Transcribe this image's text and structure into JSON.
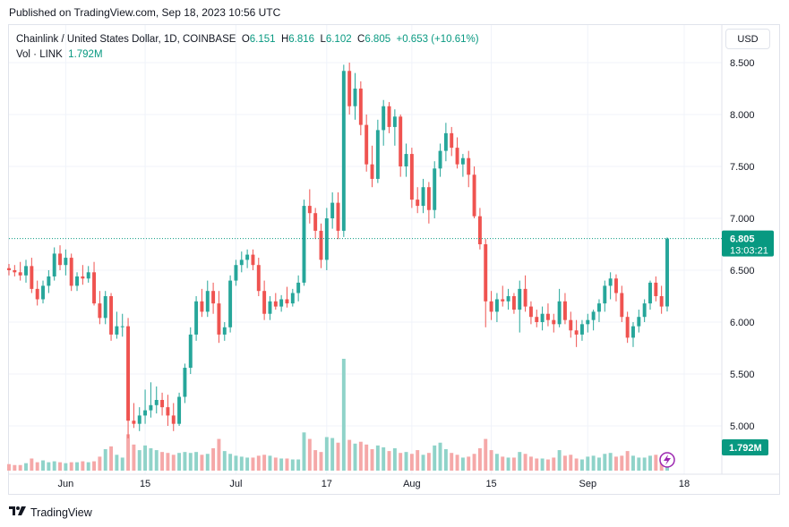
{
  "header": {
    "published": "Published on TradingView.com, Sep 18, 2023 10:56 UTC"
  },
  "legend": {
    "symbol": "Chainlink / United States Dollar, 1D, COINBASE",
    "o_label": "O",
    "o": "6.151",
    "h_label": "H",
    "h": "6.816",
    "l_label": "L",
    "l": "6.102",
    "c_label": "C",
    "c": "6.805",
    "change": "+0.653 (+10.61%)",
    "vol_label": "Vol · LINK",
    "vol": "1.792M"
  },
  "currency_button": "USD",
  "price_badge": {
    "price": "6.805",
    "countdown": "13:03:21"
  },
  "volume_badge": "1.792M",
  "footer": {
    "brand": "TradingView"
  },
  "colors": {
    "up": "#26a69a",
    "down": "#ef5350",
    "up_vol": "#8fd3c9",
    "down_vol": "#f5a8a8",
    "badge": "#089981",
    "grid": "#f0f3fa",
    "price_line": "#089981",
    "lightning": "#9c27b0"
  },
  "chart_data": {
    "type": "candlestick",
    "title": "Chainlink / United States Dollar, 1D, COINBASE",
    "ylim": [
      4.8,
      8.6
    ],
    "y_ticks": [
      "8.500",
      "8.000",
      "7.500",
      "7.000",
      "6.500",
      "6.000",
      "5.500",
      "5.000"
    ],
    "x_ticks": [
      {
        "label": "Jun",
        "index": 10
      },
      {
        "label": "15",
        "index": 24
      },
      {
        "label": "Jul",
        "index": 40
      },
      {
        "label": "17",
        "index": 56
      },
      {
        "label": "Aug",
        "index": 71
      },
      {
        "label": "15",
        "index": 85
      },
      {
        "label": "Sep",
        "index": 102
      },
      {
        "label": "18",
        "index": 119
      }
    ],
    "grid": true,
    "ohlc": [
      [
        6.52,
        6.56,
        6.45,
        6.5
      ],
      [
        6.5,
        6.55,
        6.44,
        6.48
      ],
      [
        6.48,
        6.58,
        6.4,
        6.45
      ],
      [
        6.45,
        6.6,
        6.38,
        6.54
      ],
      [
        6.54,
        6.62,
        6.28,
        6.32
      ],
      [
        6.32,
        6.4,
        6.16,
        6.22
      ],
      [
        6.22,
        6.4,
        6.18,
        6.35
      ],
      [
        6.35,
        6.5,
        6.28,
        6.44
      ],
      [
        6.44,
        6.72,
        6.4,
        6.66
      ],
      [
        6.66,
        6.74,
        6.5,
        6.55
      ],
      [
        6.55,
        6.7,
        6.45,
        6.62
      ],
      [
        6.62,
        6.66,
        6.3,
        6.35
      ],
      [
        6.35,
        6.48,
        6.3,
        6.44
      ],
      [
        6.44,
        6.55,
        6.36,
        6.42
      ],
      [
        6.42,
        6.54,
        6.38,
        6.48
      ],
      [
        6.48,
        6.58,
        6.16,
        6.18
      ],
      [
        6.18,
        6.3,
        5.98,
        6.04
      ],
      [
        6.04,
        6.3,
        5.98,
        6.25
      ],
      [
        6.25,
        6.28,
        5.82,
        5.88
      ],
      [
        5.88,
        6.1,
        5.84,
        5.96
      ],
      [
        5.96,
        6.08,
        5.86,
        5.96
      ],
      [
        5.96,
        6.04,
        4.88,
        5.05
      ],
      [
        5.05,
        5.22,
        4.98,
        5.02
      ],
      [
        5.02,
        5.18,
        4.95,
        5.1
      ],
      [
        5.1,
        5.35,
        5.02,
        5.15
      ],
      [
        5.15,
        5.42,
        5.08,
        5.2
      ],
      [
        5.2,
        5.38,
        5.12,
        5.25
      ],
      [
        5.25,
        5.32,
        5.1,
        5.18
      ],
      [
        5.18,
        5.3,
        5.0,
        5.1
      ],
      [
        5.1,
        5.22,
        4.95,
        5.02
      ],
      [
        5.02,
        5.32,
        5.0,
        5.28
      ],
      [
        5.28,
        5.6,
        5.22,
        5.56
      ],
      [
        5.56,
        5.95,
        5.5,
        5.88
      ],
      [
        5.88,
        6.25,
        5.82,
        6.2
      ],
      [
        6.2,
        6.32,
        6.05,
        6.1
      ],
      [
        6.1,
        6.4,
        6.05,
        6.3
      ],
      [
        6.3,
        6.38,
        6.08,
        6.18
      ],
      [
        6.18,
        6.3,
        5.8,
        5.88
      ],
      [
        5.88,
        6.0,
        5.82,
        5.95
      ],
      [
        5.95,
        6.45,
        5.9,
        6.4
      ],
      [
        6.4,
        6.6,
        6.35,
        6.55
      ],
      [
        6.55,
        6.68,
        6.48,
        6.6
      ],
      [
        6.6,
        6.7,
        6.52,
        6.65
      ],
      [
        6.65,
        6.7,
        6.5,
        6.55
      ],
      [
        6.55,
        6.62,
        6.25,
        6.3
      ],
      [
        6.3,
        6.4,
        6.02,
        6.08
      ],
      [
        6.08,
        6.25,
        6.02,
        6.2
      ],
      [
        6.2,
        6.28,
        6.12,
        6.15
      ],
      [
        6.15,
        6.26,
        6.1,
        6.22
      ],
      [
        6.22,
        6.34,
        6.14,
        6.18
      ],
      [
        6.18,
        6.32,
        6.15,
        6.28
      ],
      [
        6.28,
        6.45,
        6.2,
        6.38
      ],
      [
        6.38,
        7.18,
        6.35,
        7.12
      ],
      [
        7.12,
        7.28,
        6.95,
        7.05
      ],
      [
        7.05,
        7.1,
        6.8,
        6.88
      ],
      [
        6.88,
        6.95,
        6.52,
        6.6
      ],
      [
        6.6,
        7.1,
        6.5,
        7.0
      ],
      [
        7.0,
        7.25,
        6.9,
        7.15
      ],
      [
        7.15,
        7.25,
        6.8,
        6.88
      ],
      [
        6.88,
        8.48,
        6.82,
        8.42
      ],
      [
        8.42,
        8.5,
        8.0,
        8.08
      ],
      [
        8.08,
        8.4,
        7.95,
        8.25
      ],
      [
        8.25,
        8.32,
        7.8,
        7.9
      ],
      [
        7.9,
        8.0,
        7.45,
        7.52
      ],
      [
        7.52,
        7.7,
        7.3,
        7.38
      ],
      [
        7.38,
        7.95,
        7.34,
        7.85
      ],
      [
        7.85,
        8.14,
        7.7,
        8.08
      ],
      [
        8.08,
        8.12,
        7.82,
        7.88
      ],
      [
        7.88,
        8.05,
        7.7,
        7.98
      ],
      [
        7.98,
        8.0,
        7.4,
        7.5
      ],
      [
        7.5,
        7.72,
        7.4,
        7.62
      ],
      [
        7.62,
        7.68,
        7.1,
        7.18
      ],
      [
        7.18,
        7.3,
        7.05,
        7.12
      ],
      [
        7.12,
        7.38,
        7.05,
        7.3
      ],
      [
        7.3,
        7.35,
        6.95,
        7.08
      ],
      [
        7.08,
        7.55,
        7.0,
        7.48
      ],
      [
        7.48,
        7.72,
        7.4,
        7.65
      ],
      [
        7.65,
        7.92,
        7.55,
        7.82
      ],
      [
        7.82,
        7.88,
        7.6,
        7.68
      ],
      [
        7.68,
        7.78,
        7.48,
        7.52
      ],
      [
        7.52,
        7.62,
        7.4,
        7.58
      ],
      [
        7.58,
        7.65,
        7.3,
        7.42
      ],
      [
        7.42,
        7.5,
        7.0,
        7.02
      ],
      [
        7.02,
        7.1,
        6.7,
        6.75
      ],
      [
        6.75,
        6.8,
        5.95,
        6.2
      ],
      [
        6.2,
        6.3,
        6.02,
        6.1
      ],
      [
        6.1,
        6.28,
        6.0,
        6.22
      ],
      [
        6.22,
        6.35,
        6.15,
        6.2
      ],
      [
        6.2,
        6.32,
        6.12,
        6.25
      ],
      [
        6.25,
        6.28,
        6.08,
        6.12
      ],
      [
        6.12,
        6.4,
        5.9,
        6.32
      ],
      [
        6.32,
        6.45,
        6.1,
        6.15
      ],
      [
        6.15,
        6.2,
        5.98,
        6.05
      ],
      [
        6.05,
        6.12,
        5.95,
        6.0
      ],
      [
        6.0,
        6.15,
        5.92,
        6.08
      ],
      [
        6.08,
        6.18,
        5.96,
        6.02
      ],
      [
        6.02,
        6.08,
        5.9,
        5.98
      ],
      [
        5.98,
        6.32,
        5.95,
        6.2
      ],
      [
        6.2,
        6.28,
        5.98,
        6.02
      ],
      [
        6.02,
        6.1,
        5.85,
        5.92
      ],
      [
        5.92,
        6.02,
        5.76,
        5.88
      ],
      [
        5.88,
        6.02,
        5.82,
        5.98
      ],
      [
        5.98,
        6.08,
        5.9,
        6.02
      ],
      [
        6.02,
        6.12,
        5.92,
        6.1
      ],
      [
        6.1,
        6.22,
        6.0,
        6.18
      ],
      [
        6.18,
        6.4,
        6.1,
        6.35
      ],
      [
        6.35,
        6.48,
        6.22,
        6.42
      ],
      [
        6.42,
        6.46,
        6.2,
        6.28
      ],
      [
        6.28,
        6.35,
        6.0,
        6.05
      ],
      [
        6.05,
        6.1,
        5.8,
        5.85
      ],
      [
        5.85,
        6.0,
        5.76,
        5.96
      ],
      [
        5.96,
        6.12,
        5.9,
        6.05
      ],
      [
        6.05,
        6.22,
        6.0,
        6.18
      ],
      [
        6.18,
        6.4,
        6.12,
        6.38
      ],
      [
        6.38,
        6.44,
        6.2,
        6.25
      ],
      [
        6.25,
        6.35,
        6.08,
        6.15
      ],
      [
        6.151,
        6.816,
        6.102,
        6.805
      ]
    ],
    "volume_millions": [
      0.7,
      0.6,
      0.6,
      0.8,
      1.3,
      0.9,
      1.1,
      0.9,
      1.0,
      0.9,
      0.8,
      0.9,
      0.9,
      1.0,
      0.9,
      1.0,
      1.5,
      2.3,
      2.6,
      1.7,
      1.4,
      3.9,
      2.8,
      2.2,
      2.7,
      2.4,
      2.2,
      2.0,
      1.9,
      1.7,
      1.9,
      2.0,
      1.9,
      2.0,
      1.7,
      1.8,
      2.4,
      3.4,
      2.1,
      1.8,
      1.6,
      1.5,
      1.4,
      1.4,
      1.6,
      1.7,
      1.6,
      1.4,
      1.3,
      1.3,
      1.2,
      1.2,
      4.1,
      3.4,
      2.2,
      2.0,
      3.6,
      3.5,
      3.0,
      12.0,
      3.3,
      2.9,
      3.1,
      2.8,
      2.3,
      2.7,
      2.5,
      2.1,
      2.4,
      1.9,
      2.0,
      1.8,
      2.2,
      1.7,
      1.9,
      2.7,
      3.0,
      2.3,
      1.9,
      1.7,
      1.4,
      1.5,
      1.8,
      2.4,
      3.4,
      2.2,
      1.8,
      1.5,
      1.4,
      1.4,
      2.0,
      1.8,
      1.5,
      1.3,
      1.3,
      1.2,
      1.4,
      2.2,
      1.6,
      1.7,
      1.3,
      1.2,
      1.5,
      1.6,
      1.4,
      1.8,
      1.9,
      1.5,
      1.6,
      2.1,
      1.6,
      1.4,
      1.4,
      1.6,
      1.7,
      1.5,
      1.792
    ],
    "last_price": 6.805
  }
}
